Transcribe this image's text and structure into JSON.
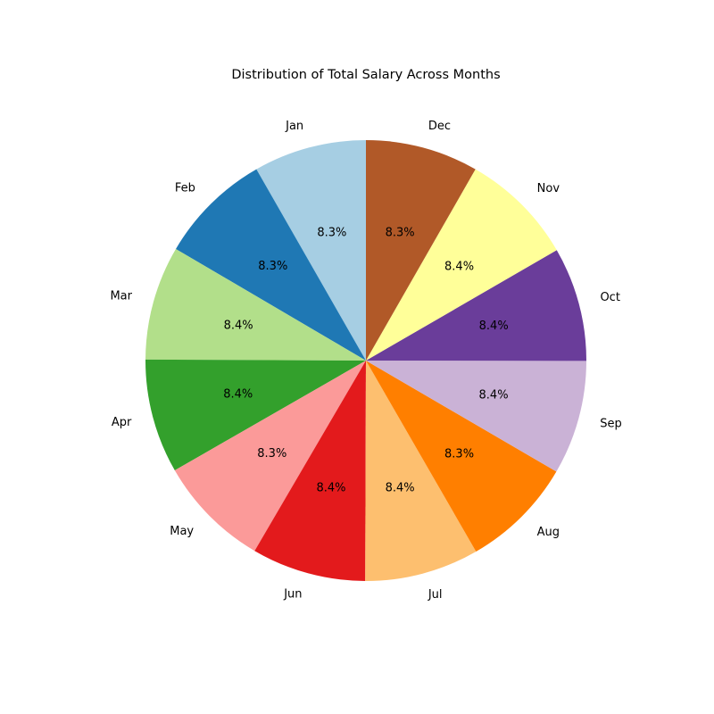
{
  "chart_data": {
    "type": "pie",
    "title": "Distribution of Total Salary Across Months",
    "categories": [
      "Jan",
      "Feb",
      "Mar",
      "Apr",
      "May",
      "Jun",
      "Jul",
      "Aug",
      "Sep",
      "Oct",
      "Nov",
      "Dec"
    ],
    "values": [
      8.3,
      8.3,
      8.4,
      8.4,
      8.3,
      8.4,
      8.4,
      8.3,
      8.4,
      8.4,
      8.4,
      8.3
    ],
    "value_labels": [
      "8.3%",
      "8.3%",
      "8.4%",
      "8.4%",
      "8.3%",
      "8.4%",
      "8.4%",
      "8.3%",
      "8.4%",
      "8.4%",
      "8.4%",
      "8.3%"
    ],
    "colors": [
      "#a6cee3",
      "#1f78b4",
      "#b2df8a",
      "#33a02c",
      "#fb9a99",
      "#e31a1c",
      "#fdbf6f",
      "#ff7f00",
      "#cab2d6",
      "#6a3d9a",
      "#ffff99",
      "#b15928"
    ],
    "start_angle_deg": 90,
    "direction": "counterclockwise",
    "legend": "none"
  }
}
